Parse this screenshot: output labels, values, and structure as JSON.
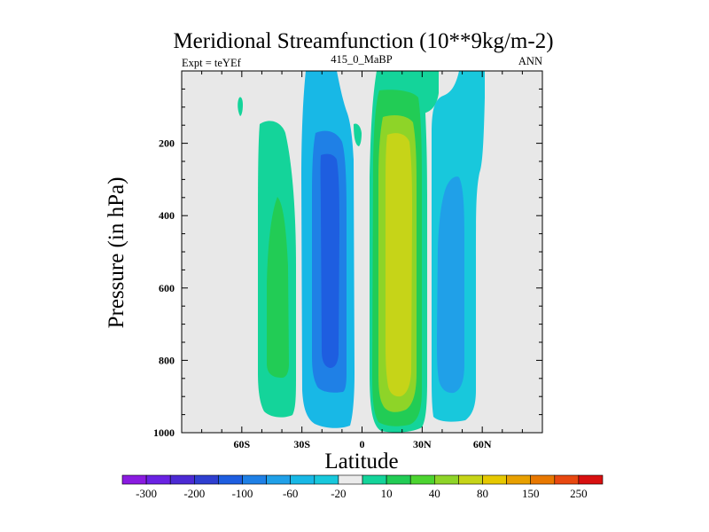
{
  "chart_data": {
    "type": "contour",
    "title": "Meridional Streamfunction (10**9kg/m-2)",
    "left_label": "Expt = teYEf",
    "center_label": "415_0_MaBP",
    "right_label": "ANN",
    "xlabel": "Latitude",
    "ylabel": "Pressure (in hPa)",
    "xlim": [
      -90,
      90
    ],
    "ylim": [
      1000,
      0
    ],
    "x_ticks": [
      {
        "value": -60,
        "label": "60S"
      },
      {
        "value": -30,
        "label": "30S"
      },
      {
        "value": 0,
        "label": "0"
      },
      {
        "value": 30,
        "label": "30N"
      },
      {
        "value": 60,
        "label": "60N"
      }
    ],
    "y_ticks": [
      {
        "value": 200,
        "label": "200"
      },
      {
        "value": 400,
        "label": "400"
      },
      {
        "value": 600,
        "label": "600"
      },
      {
        "value": 800,
        "label": "800"
      },
      {
        "value": 1000,
        "label": "1000"
      }
    ],
    "colorbar": {
      "colors": [
        "#8a1be0",
        "#6a22e3",
        "#4c2ad4",
        "#2f3fd0",
        "#1e5ee0",
        "#1f80e6",
        "#20a0e8",
        "#18b8e6",
        "#18c8dc",
        "#ebebeb",
        "#14d49a",
        "#22cc55",
        "#4cd430",
        "#8ed428",
        "#c6d418",
        "#e6c800",
        "#e8a000",
        "#e87800",
        "#e84810",
        "#d81010"
      ],
      "labels": [
        "-300",
        "-200",
        "-100",
        "-60",
        "-20",
        "10",
        "40",
        "80",
        "150",
        "250"
      ]
    },
    "regions": [
      {
        "name": "sh-ferrel-cell",
        "sign": "positive",
        "level": "10 to 40",
        "lat_range": [
          -55,
          -25
        ],
        "p_range": [
          135,
          975
        ],
        "color": "#14d49a"
      },
      {
        "name": "sh-ferrel-core",
        "sign": "positive",
        "level": "40 to 80",
        "lat_range": [
          -45,
          -33
        ],
        "p_range": [
          340,
          920
        ],
        "color": "#22cc55"
      },
      {
        "name": "sh-hadley-cell",
        "sign": "negative",
        "level": "-20 to -10",
        "lat_range": [
          -30,
          -2
        ],
        "p_range": [
          0,
          975
        ],
        "color": "#18b8e6"
      },
      {
        "name": "sh-hadley-core",
        "sign": "negative",
        "level": "-100 to -60",
        "lat_range": [
          -21,
          -10
        ],
        "p_range": [
          260,
          860
        ],
        "color": "#1e5ee0"
      },
      {
        "name": "nh-hadley-cell",
        "sign": "positive",
        "level": "10 to 40",
        "lat_range": [
          6,
          33
        ],
        "p_range": [
          0,
          990
        ],
        "color": "#14d49a"
      },
      {
        "name": "nh-hadley-core",
        "sign": "positive",
        "level": "80 to 150",
        "lat_range": [
          13,
          23
        ],
        "p_range": [
          170,
          895
        ],
        "color": "#c6d418"
      },
      {
        "name": "nh-ferrel-cell",
        "sign": "negative",
        "level": "-20 to -10",
        "lat_range": [
          36,
          62
        ],
        "p_range": [
          0,
          965
        ],
        "color": "#18c8dc"
      },
      {
        "name": "nh-ferrel-core",
        "sign": "negative",
        "level": "-60 to -20",
        "lat_range": [
          41,
          53
        ],
        "p_range": [
          285,
          900
        ],
        "color": "#20a0e8"
      }
    ]
  }
}
